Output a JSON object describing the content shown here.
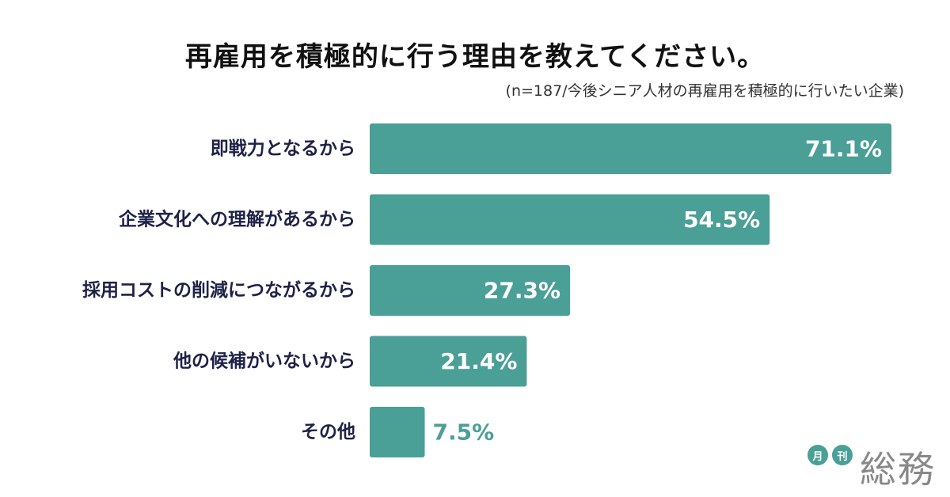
{
  "chart_data": {
    "type": "bar",
    "orientation": "horizontal",
    "title": "再雇用を積極的に行う理由を教えてください。",
    "subtitle": "(n=187/今後シニア人材の再雇用を積極的に行いたい企業)",
    "categories": [
      "即戦力となるから",
      "企業文化への理解があるから",
      "採用コストの削減につながるから",
      "他の候補がいないから",
      "その他"
    ],
    "values": [
      71.1,
      54.5,
      27.3,
      21.4,
      7.5
    ],
    "value_labels": [
      "71.1%",
      "54.5%",
      "27.3%",
      "21.4%",
      "7.5%"
    ],
    "unit": "%",
    "xlim": [
      0,
      100
    ],
    "grid": false,
    "bar_color": "#4a9f96",
    "inside_label_color": "#ffffff",
    "outside_label_color": "#4a9f96",
    "category_label_color": "#1f2147"
  },
  "logo": {
    "badge_1": "月",
    "badge_2": "刊",
    "text": "総務",
    "color": "#4a9f96"
  }
}
